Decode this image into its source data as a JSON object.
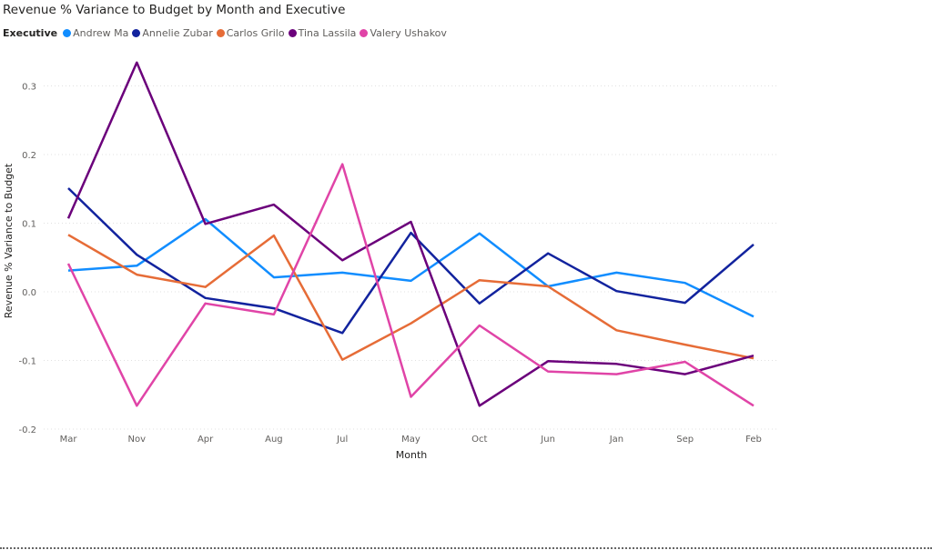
{
  "chart_data": {
    "type": "line",
    "title": "Revenue % Variance to Budget by Month and Executive",
    "legend_title": "Executive",
    "legend_position": "top-left",
    "xlabel": "Month",
    "ylabel": "Revenue % Variance to Budget",
    "categories": [
      "Mar",
      "Nov",
      "Apr",
      "Aug",
      "Jul",
      "May",
      "Oct",
      "Jun",
      "Jan",
      "Sep",
      "Feb"
    ],
    "yticks": [
      "0.3",
      "0.2",
      "0.1",
      "0.0",
      "-0.1",
      "-0.2"
    ],
    "ylim": [
      -0.2,
      0.35
    ],
    "grid": true,
    "series": [
      {
        "name": "Andrew Ma",
        "color": "#118dff",
        "values": [
          0.031,
          0.038,
          0.106,
          0.021,
          0.028,
          0.016,
          0.085,
          0.008,
          0.028,
          0.013,
          -0.036
        ]
      },
      {
        "name": "Annelie Zubar",
        "color": "#12239e",
        "values": [
          0.151,
          0.054,
          -0.009,
          -0.024,
          -0.06,
          0.086,
          -0.017,
          0.056,
          0.001,
          -0.016,
          0.069
        ]
      },
      {
        "name": "Carlos Grilo",
        "color": "#e66c37",
        "values": [
          0.083,
          0.025,
          0.007,
          0.082,
          -0.099,
          -0.046,
          0.017,
          0.008,
          -0.056,
          -0.077,
          -0.097
        ]
      },
      {
        "name": "Tina Lassila",
        "color": "#6b007b",
        "values": [
          0.107,
          0.334,
          0.099,
          0.127,
          0.046,
          0.102,
          -0.166,
          -0.101,
          -0.105,
          -0.12,
          -0.093
        ]
      },
      {
        "name": "Valery Ushakov",
        "color": "#e044a7",
        "values": [
          0.041,
          -0.166,
          -0.017,
          -0.033,
          0.186,
          -0.153,
          -0.049,
          -0.116,
          -0.12,
          -0.102,
          -0.166
        ]
      }
    ]
  }
}
